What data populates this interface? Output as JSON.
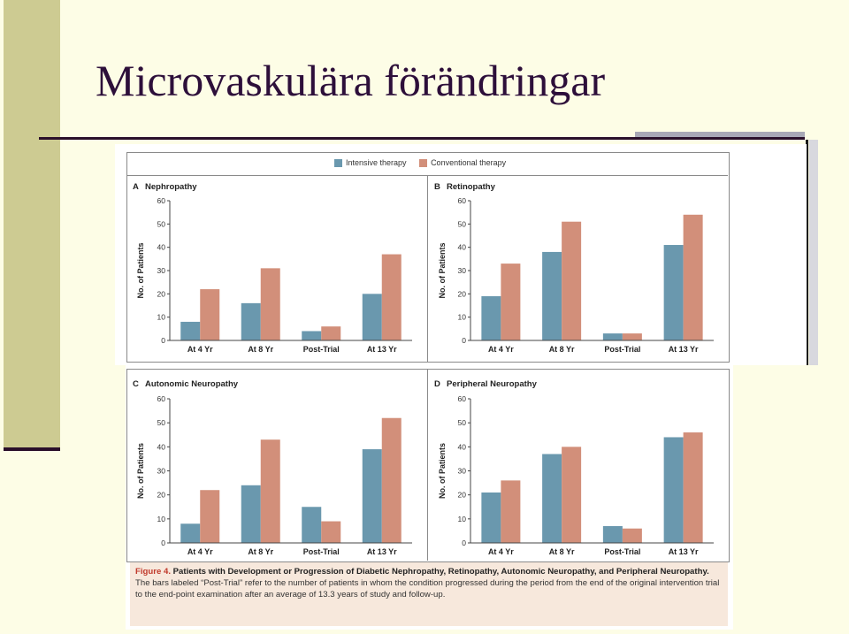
{
  "slide": {
    "title": "Microvaskulära förändringar"
  },
  "legend": {
    "intensive": "Intensive therapy",
    "conventional": "Conventional therapy"
  },
  "colors": {
    "intensive": "#6a98ae",
    "conventional": "#d28f7a"
  },
  "caption": {
    "label": "Figure 4.",
    "title": "Patients with Development or Progression of Diabetic Nephropathy, Retinopathy, Autonomic Neuropathy, and Peripheral Neuropathy.",
    "text": "The bars labeled “Post-Trial” refer to the number of patients in whom the condition progressed during the period from the end of the original intervention trial to the end-point examination after an average of 13.3 years of study and follow-up."
  },
  "chart_data": [
    {
      "type": "bar",
      "panel": "A",
      "title": "Nephropathy",
      "ylabel": "No. of Patients",
      "ylim": [
        0,
        60
      ],
      "yticks": [
        0,
        10,
        20,
        30,
        40,
        50,
        60
      ],
      "categories": [
        "At 4 Yr",
        "At 8 Yr",
        "Post-Trial",
        "At 13 Yr"
      ],
      "series": [
        {
          "name": "Intensive therapy",
          "values": [
            8,
            16,
            4,
            20
          ]
        },
        {
          "name": "Conventional therapy",
          "values": [
            22,
            31,
            6,
            37
          ]
        }
      ]
    },
    {
      "type": "bar",
      "panel": "B",
      "title": "Retinopathy",
      "ylabel": "No. of Patients",
      "ylim": [
        0,
        60
      ],
      "yticks": [
        0,
        10,
        20,
        30,
        40,
        50,
        60
      ],
      "categories": [
        "At 4 Yr",
        "At 8 Yr",
        "Post-Trial",
        "At 13 Yr"
      ],
      "series": [
        {
          "name": "Intensive therapy",
          "values": [
            19,
            38,
            3,
            41
          ]
        },
        {
          "name": "Conventional therapy",
          "values": [
            33,
            51,
            3,
            54
          ]
        }
      ]
    },
    {
      "type": "bar",
      "panel": "C",
      "title": "Autonomic Neuropathy",
      "ylabel": "No. of Patients",
      "ylim": [
        0,
        60
      ],
      "yticks": [
        0,
        10,
        20,
        30,
        40,
        50,
        60
      ],
      "categories": [
        "At 4 Yr",
        "At 8 Yr",
        "Post-Trial",
        "At 13 Yr"
      ],
      "series": [
        {
          "name": "Intensive therapy",
          "values": [
            8,
            24,
            15,
            39
          ]
        },
        {
          "name": "Conventional therapy",
          "values": [
            22,
            43,
            9,
            52
          ]
        }
      ]
    },
    {
      "type": "bar",
      "panel": "D",
      "title": "Peripheral Neuropathy",
      "ylabel": "No. of Patients",
      "ylim": [
        0,
        60
      ],
      "yticks": [
        0,
        10,
        20,
        30,
        40,
        50,
        60
      ],
      "categories": [
        "At 4 Yr",
        "At 8 Yr",
        "Post-Trial",
        "At 13 Yr"
      ],
      "series": [
        {
          "name": "Intensive therapy",
          "values": [
            21,
            37,
            7,
            44
          ]
        },
        {
          "name": "Conventional therapy",
          "values": [
            26,
            40,
            6,
            46
          ]
        }
      ]
    }
  ]
}
